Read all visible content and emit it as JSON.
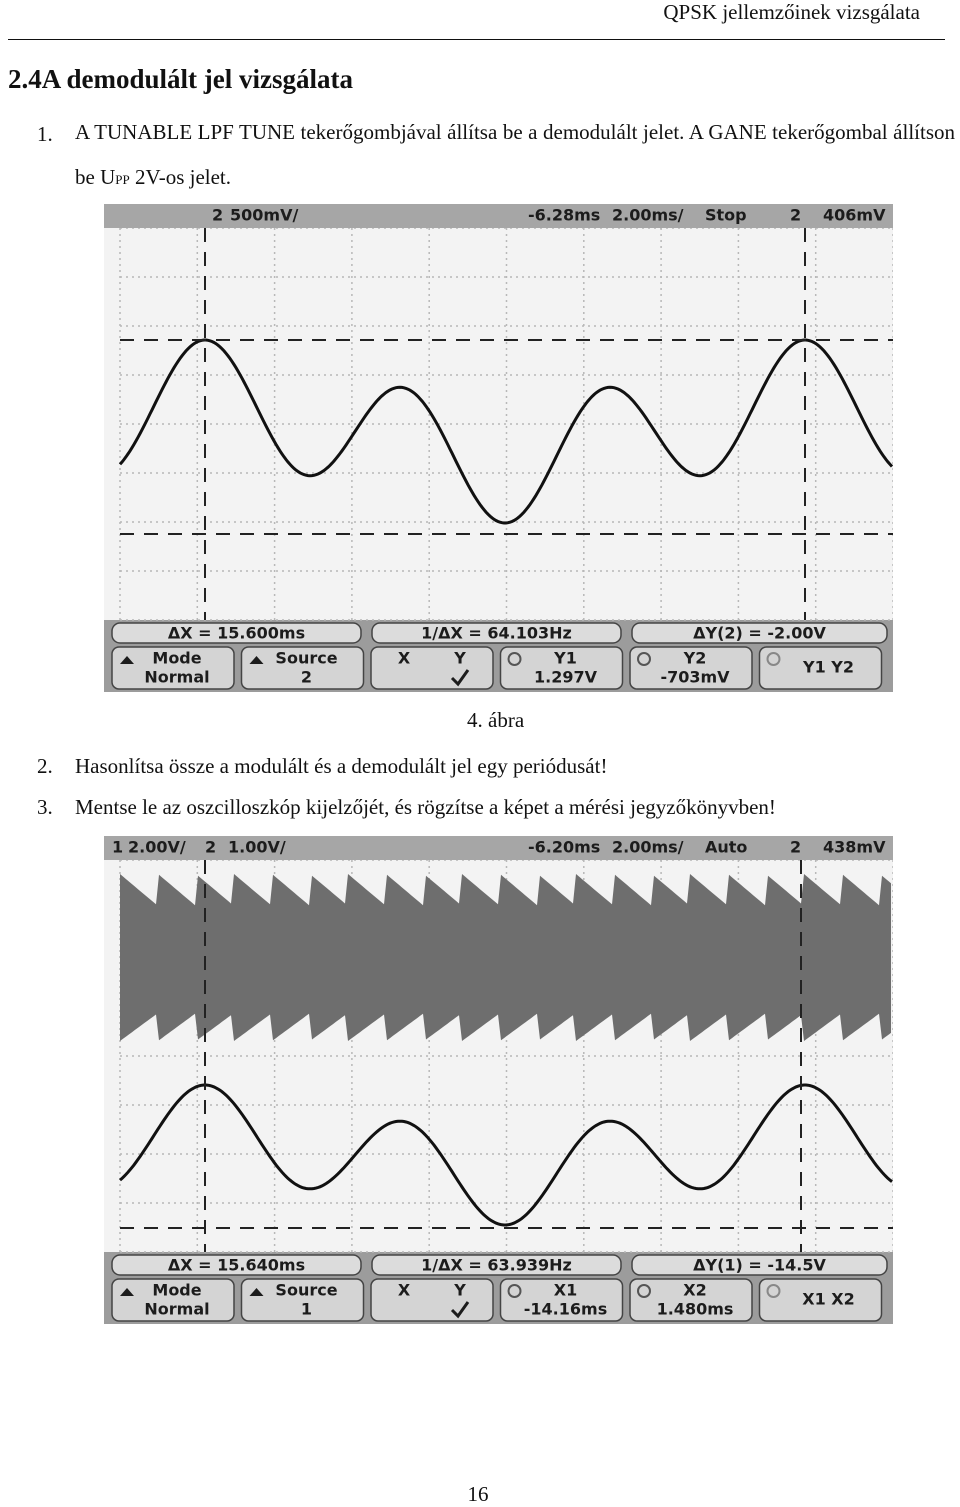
{
  "header": {
    "running_title": "QPSK jellemzőinek vizsgálata"
  },
  "section": {
    "title": "2.4A demodulált jel vizsgálata"
  },
  "items": [
    {
      "number": "1.",
      "text": "A TUNABLE LPF TUNE tekerőgombjával állítsa be a demodulált jelet. A GANE tekerőgombal állítson be U",
      "subscript": "PP",
      "text_after": " 2V-os jelet."
    },
    {
      "number": "2.",
      "text": "Hasonlítsa össze a modulált és a demodulált jel egy periódusát!"
    },
    {
      "number": "3.",
      "text": "Mentse le az oszcilloszkóp kijelzőjét, és rögzítse a képet a mérési jegyzőkönyvben!"
    }
  ],
  "figures": [
    {
      "top": [
        "2",
        "500mV/",
        "-6.28ms",
        "2.00ms/",
        "Stop",
        "2",
        "406mV"
      ],
      "measurements": [
        "ΔX = 15.600ms",
        "1/ΔX = 64.103Hz",
        "ΔY(2) = -2.00V"
      ],
      "softkeys": [
        [
          "Mode",
          "Normal"
        ],
        [
          "Source",
          "2"
        ],
        [
          "X",
          "Y"
        ],
        [
          "Y1",
          "1.297V"
        ],
        [
          "Y2",
          "-703mV"
        ],
        [
          "Y1 Y2"
        ]
      ],
      "caption": "4. ábra"
    },
    {
      "top": [
        "1",
        "2.00V/",
        "2",
        "1.00V/",
        "-6.20ms",
        "2.00ms/",
        "Auto",
        "2",
        "438mV"
      ],
      "measurements": [
        "ΔX = 15.640ms",
        "1/ΔX = 63.939Hz",
        "ΔY(1) = -14.5V"
      ],
      "softkeys": [
        [
          "Mode",
          "Normal"
        ],
        [
          "Source",
          "1"
        ],
        [
          "X",
          "Y"
        ],
        [
          "X1",
          "-14.16ms"
        ],
        [
          "X2",
          "1.480ms"
        ],
        [
          "X1 X2"
        ]
      ]
    }
  ],
  "footer": {
    "page_number": "16"
  }
}
